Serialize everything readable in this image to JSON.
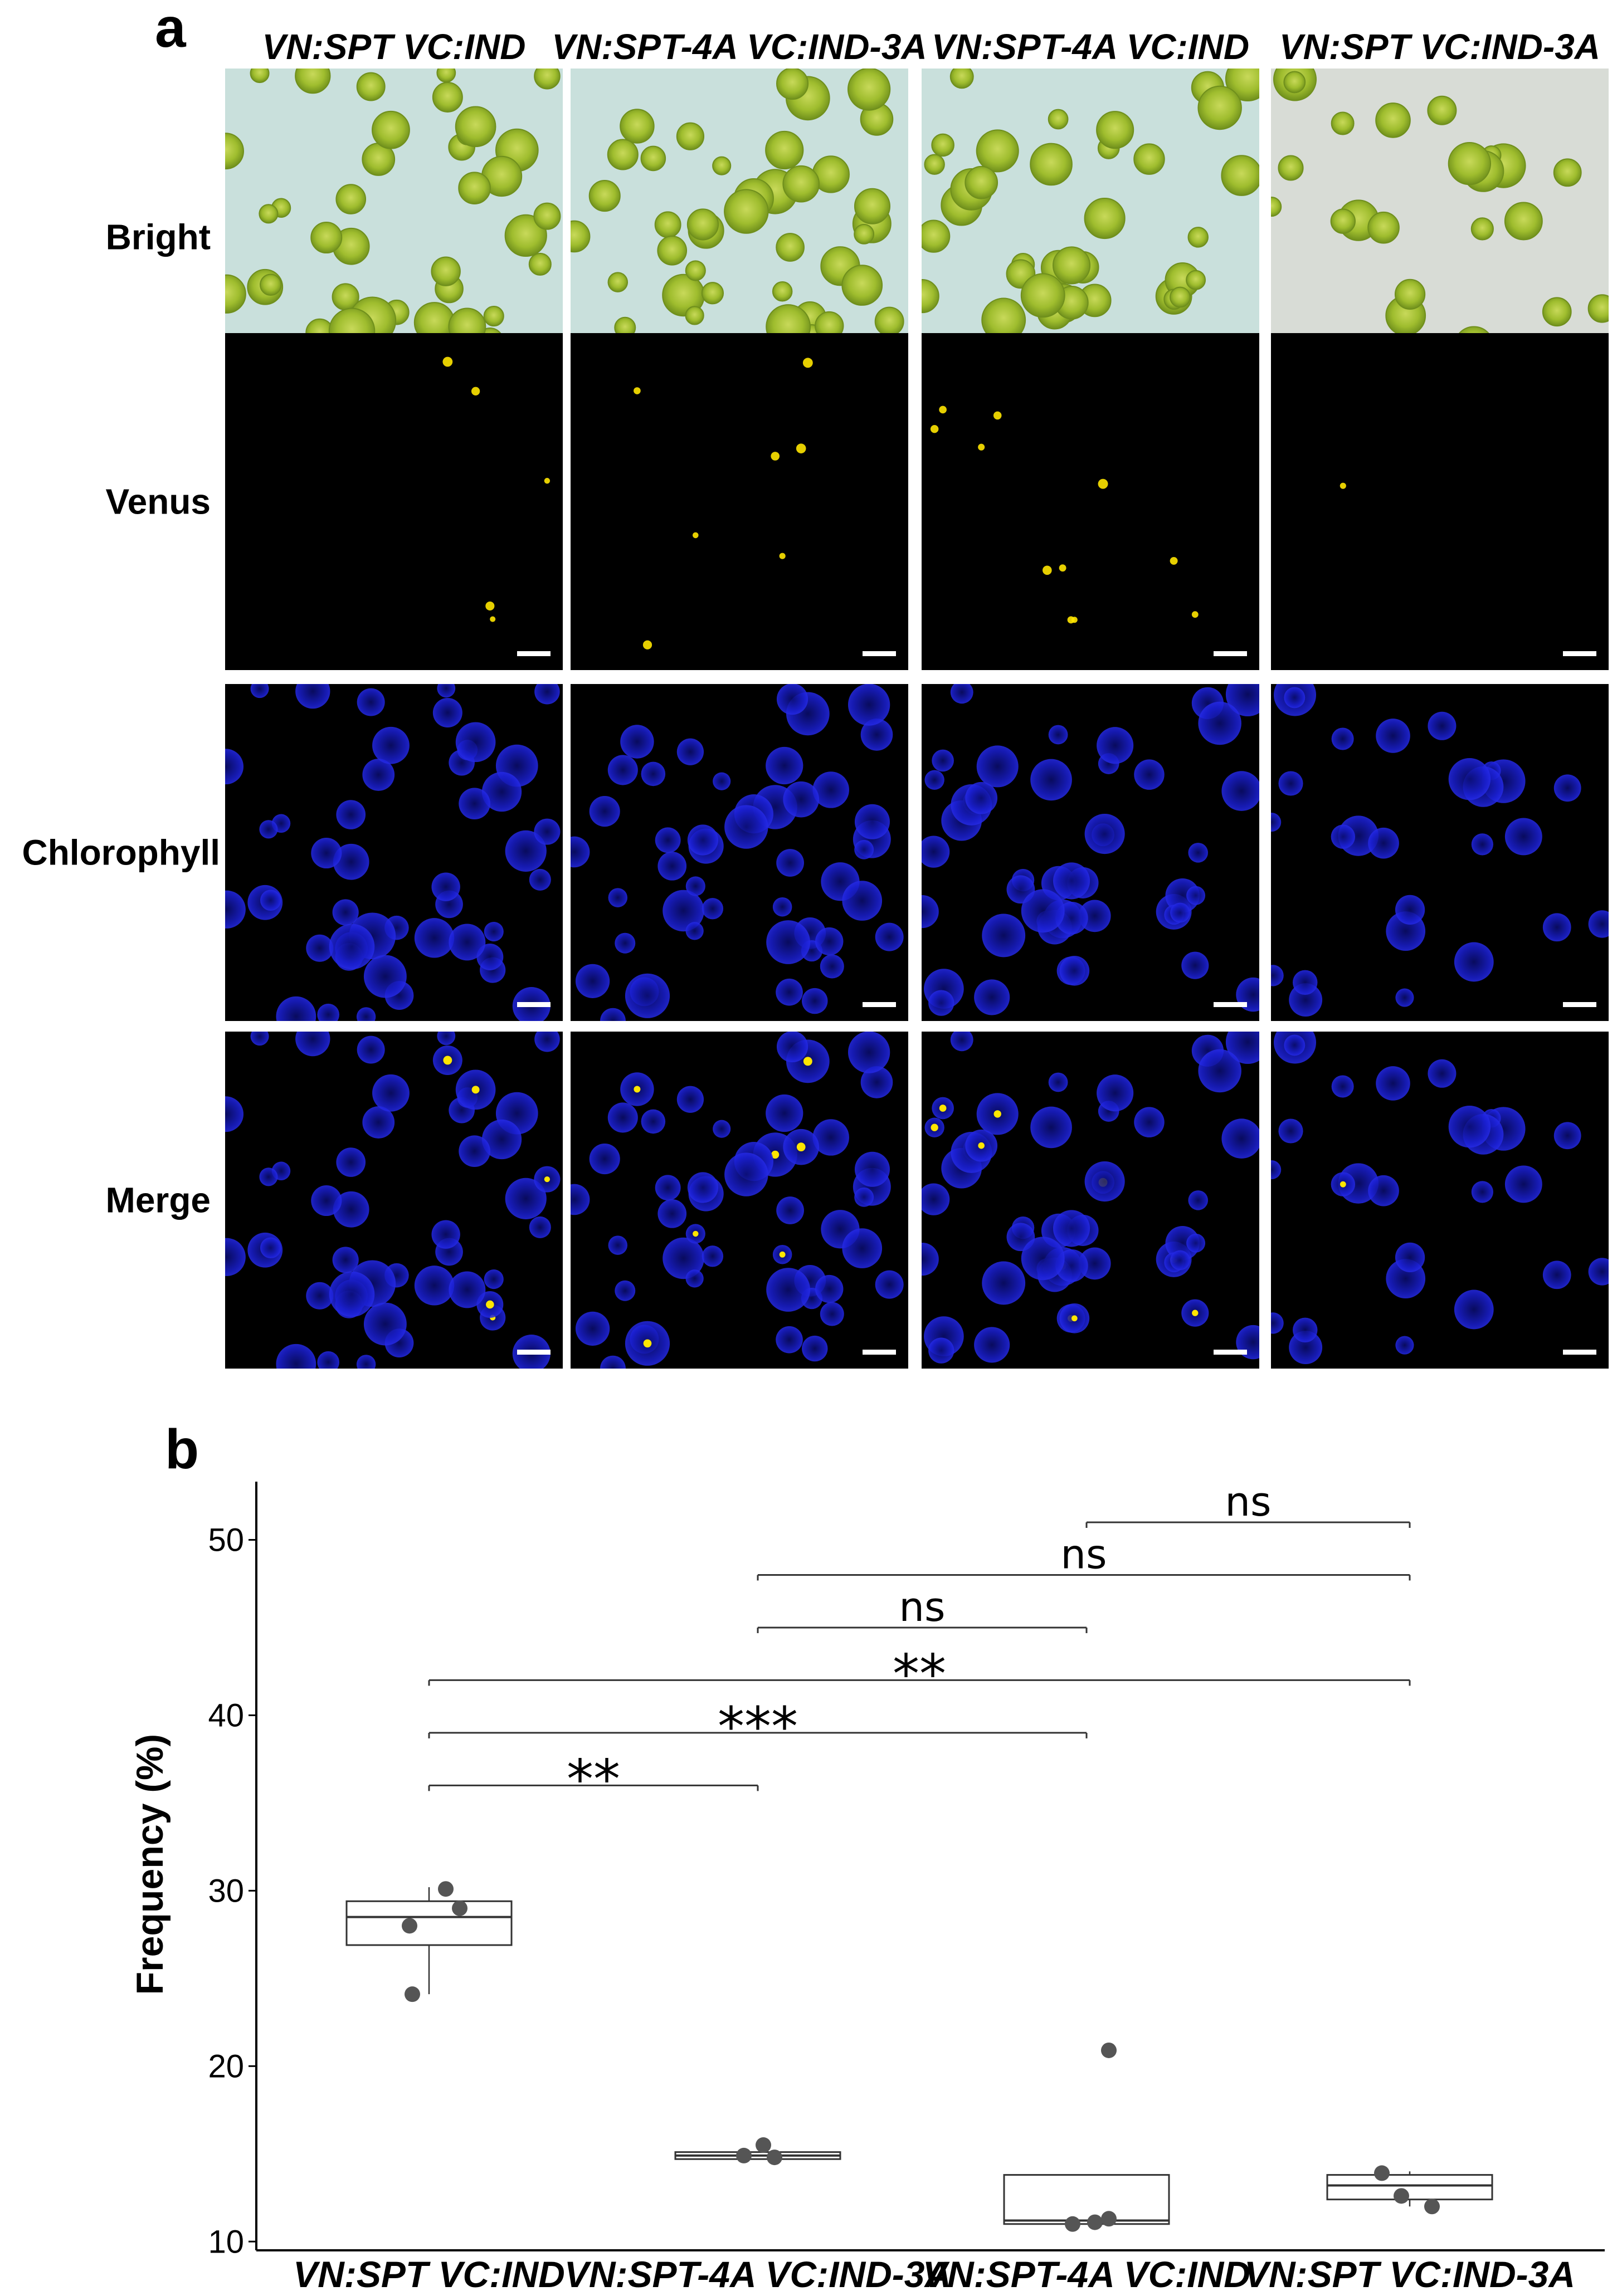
{
  "panel_a": {
    "letter": "a",
    "columns": [
      "VN:SPT VC:IND",
      "VN:SPT-4A VC:IND-3A",
      "VN:SPT-4A VC:IND",
      "VN:SPT VC:IND-3A"
    ],
    "rows": [
      "Bright",
      "Venus",
      "Chlorophyll",
      "Merge"
    ],
    "colors": {
      "bright_bg": "#c9e0dc",
      "bright_bg_alt": "#d8dcd6",
      "cell_green": "#9fbd2e",
      "cell_green_dark": "#6f8f1c",
      "venus": "#ffe600",
      "chlorophyll": "#1a1fd1",
      "dark_bg": "#000000"
    }
  },
  "panel_b": {
    "letter": "b",
    "chart_data": {
      "type": "box",
      "categories": [
        "VN:SPT VC:IND",
        "VN:SPT-4A VC:IND-3A",
        "VN:SPT-4A VC:IND",
        "VN:SPT VC:IND-3A"
      ],
      "ylabel": "Frequency (%)",
      "xlabel": "",
      "ylim": [
        9.5,
        53
      ],
      "yticks": [
        10,
        20,
        30,
        40,
        50
      ],
      "boxes": [
        {
          "q1": 26.9,
          "median": 28.5,
          "q3": 29.4,
          "whisker_low": 24.1,
          "whisker_high": 30.2
        },
        {
          "q1": 14.7,
          "median": 14.9,
          "q3": 15.1,
          "whisker_low": 14.7,
          "whisker_high": 15.1
        },
        {
          "q1": 11.0,
          "median": 11.2,
          "q3": 13.8,
          "whisker_low": 11.0,
          "whisker_high": 13.8
        },
        {
          "q1": 12.4,
          "median": 13.2,
          "q3": 13.8,
          "whisker_low": 12.0,
          "whisker_high": 14.0
        }
      ],
      "points": [
        {
          "category": 0,
          "y": 30.1
        },
        {
          "category": 0,
          "y": 29.0
        },
        {
          "category": 0,
          "y": 28.0
        },
        {
          "category": 0,
          "y": 24.1
        },
        {
          "category": 1,
          "y": 15.5
        },
        {
          "category": 1,
          "y": 14.8
        },
        {
          "category": 1,
          "y": 14.9
        },
        {
          "category": 2,
          "y": 20.9
        },
        {
          "category": 2,
          "y": 11.1
        },
        {
          "category": 2,
          "y": 11.0
        },
        {
          "category": 2,
          "y": 11.3
        },
        {
          "category": 3,
          "y": 13.9
        },
        {
          "category": 3,
          "y": 12.6
        },
        {
          "category": 3,
          "y": 12.0
        }
      ],
      "significance": [
        {
          "from": 0,
          "to": 1,
          "y": 36.0,
          "label": "**"
        },
        {
          "from": 0,
          "to": 2,
          "y": 39.0,
          "label": "***"
        },
        {
          "from": 0,
          "to": 3,
          "y": 42.0,
          "label": "**"
        },
        {
          "from": 1,
          "to": 2,
          "y": 45.0,
          "label": "ns"
        },
        {
          "from": 1,
          "to": 3,
          "y": 48.0,
          "label": "ns"
        },
        {
          "from": 2,
          "to": 3,
          "y": 51.0,
          "label": "ns"
        }
      ],
      "colors": {
        "points": "#555555",
        "box": "#333333"
      }
    }
  }
}
